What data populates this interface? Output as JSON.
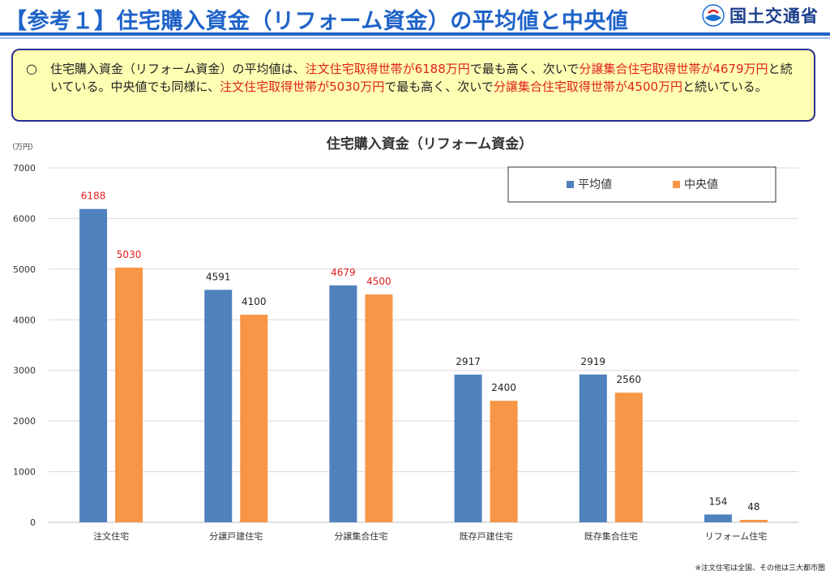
{
  "header": {
    "title": "【参考１】住宅購入資金（リフォーム資金）の平均値と中央値",
    "logo_text": "国土交通省",
    "logo_icon": "mlit-logo-mark"
  },
  "summary": {
    "bullet": "○",
    "segments": [
      {
        "text": "住宅購入資金（リフォーム資金）の平均値は、",
        "highlight": false
      },
      {
        "text": "注文住宅取得世帯が6188万円",
        "highlight": true
      },
      {
        "text": "で最も高く、次いで",
        "highlight": false
      },
      {
        "text": "分譲集合住宅取得世帯が4679万円",
        "highlight": true
      },
      {
        "text": "と続いている。中央値でも同様に、",
        "highlight": false
      },
      {
        "text": "注文住宅取得世帯が5030万円",
        "highlight": true
      },
      {
        "text": "で最も高く、次いで",
        "highlight": false
      },
      {
        "text": "分譲集合住宅取得世帯が4500万円",
        "highlight": true
      },
      {
        "text": "と続いている。",
        "highlight": false
      }
    ]
  },
  "chart_data": {
    "type": "bar",
    "title": "住宅購入資金（リフォーム資金）",
    "unit_label": "（万円）",
    "categories": [
      "注文住宅",
      "分譲戸建住宅",
      "分譲集合住宅",
      "既存戸建住宅",
      "既存集合住宅",
      "リフォーム住宅"
    ],
    "series": [
      {
        "name": "平均値",
        "color": "#4f81bd",
        "values": [
          6188,
          4591,
          4679,
          2917,
          2919,
          154
        ]
      },
      {
        "name": "中央値",
        "color": "#f79646",
        "values": [
          5030,
          4100,
          4500,
          2400,
          2560,
          48
        ]
      }
    ],
    "label_colors": [
      [
        "#e0201f",
        "#222222",
        "#e0201f",
        "#222222",
        "#222222",
        "#222222"
      ],
      [
        "#e0201f",
        "#222222",
        "#e0201f",
        "#222222",
        "#222222",
        "#222222"
      ]
    ],
    "ylim": [
      0,
      7000
    ],
    "yticks": [
      0,
      1000,
      2000,
      3000,
      4000,
      5000,
      6000,
      7000
    ],
    "grid": true,
    "legend_position": "top-right"
  },
  "footnote": "※注文住宅は全国、その他は三大都市圏"
}
